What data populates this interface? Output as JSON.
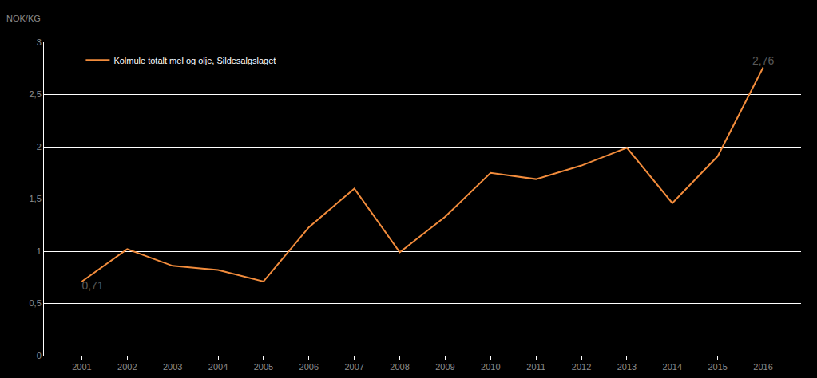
{
  "chart_data": {
    "type": "line",
    "ylabel": "NOK/KG",
    "categories": [
      "2001",
      "2002",
      "2003",
      "2004",
      "2005",
      "2006",
      "2007",
      "2008",
      "2009",
      "2010",
      "2011",
      "2012",
      "2013",
      "2014",
      "2015",
      "2016"
    ],
    "series": [
      {
        "name": "Kolmule totalt mel og olje, Sildesalgslaget",
        "color": "#f28c3c",
        "values": [
          0.71,
          1.02,
          0.86,
          0.82,
          0.71,
          1.23,
          1.6,
          0.99,
          1.33,
          1.75,
          1.69,
          1.82,
          1.99,
          1.46,
          1.91,
          2.76
        ],
        "value_labels": [
          "0,71",
          null,
          null,
          null,
          null,
          null,
          null,
          null,
          null,
          null,
          null,
          null,
          null,
          null,
          null,
          "2,76"
        ]
      }
    ],
    "ylim": [
      0,
      3
    ],
    "yticks": [
      0,
      {
        "value": 0.5,
        "label": "0,5"
      },
      1,
      {
        "value": 1.5,
        "label": "1,5"
      },
      2,
      {
        "value": 2.5,
        "label": "2,5"
      },
      3
    ],
    "grid": true,
    "legend": "upper left"
  }
}
